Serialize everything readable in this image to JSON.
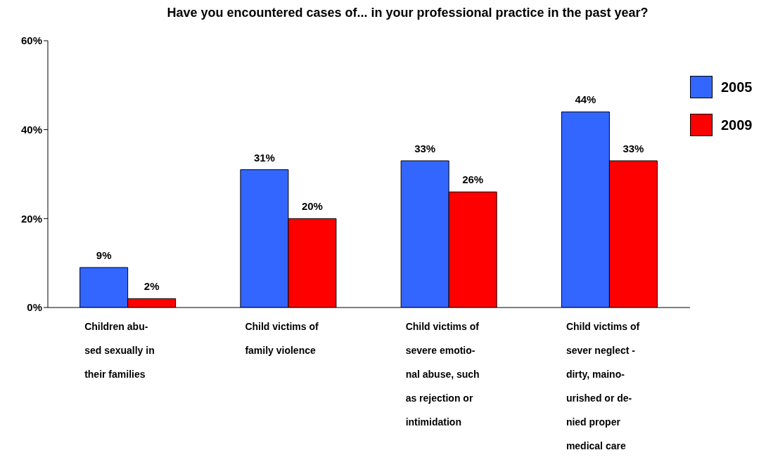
{
  "chart_data": {
    "type": "bar",
    "title": "Have you encountered cases of... in your professional practice in the past year?",
    "categories": [
      "Children abu-\nsed sexually in\ntheir families",
      "Child victims of\nfamily violence",
      "Child victims of\nsevere emotio-\nnal abuse, such\nas rejection or\nintimidation",
      "Child victims of\nsever neglect -\ndirty, maino-\nurished or de-\nnied proper\nmedical care"
    ],
    "series": [
      {
        "name": "2005",
        "color": "#3366ff",
        "values": [
          9,
          31,
          33,
          44
        ],
        "value_labels": [
          "9%",
          "31%",
          "33%",
          "44%"
        ]
      },
      {
        "name": "2009",
        "color": "#ff0000",
        "values": [
          2,
          20,
          26,
          33
        ],
        "value_labels": [
          "2%",
          "20%",
          "26%",
          "33%"
        ]
      }
    ],
    "ylim": [
      0,
      60
    ],
    "yticks": [
      {
        "value": 0,
        "label": "0%"
      },
      {
        "value": 20,
        "label": "20%"
      },
      {
        "value": 40,
        "label": "40%"
      },
      {
        "value": 60,
        "label": "60%"
      }
    ],
    "legend": "top right",
    "grid": false
  }
}
